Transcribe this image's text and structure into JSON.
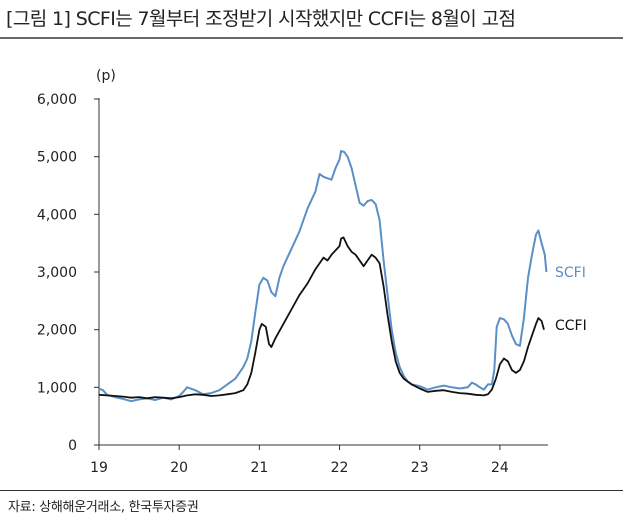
{
  "title": "[그림 1] SCFI는 7월부터 조정받기 시작했지만 CCFI는 8월이 고점",
  "source": "자료: 상해해운거래소, 한국투자증권",
  "chart_data": {
    "type": "line",
    "unit_label": "(p)",
    "ylim": [
      0,
      6000
    ],
    "yticks": [
      {
        "v": 0,
        "label": "0"
      },
      {
        "v": 1000,
        "label": "1,000"
      },
      {
        "v": 2000,
        "label": "2,000"
      },
      {
        "v": 3000,
        "label": "3,000"
      },
      {
        "v": 4000,
        "label": "4,000"
      },
      {
        "v": 5000,
        "label": "5,000"
      },
      {
        "v": 6000,
        "label": "6,000"
      }
    ],
    "xlim": [
      19,
      24.6
    ],
    "xticks": [
      {
        "v": 19,
        "label": "19"
      },
      {
        "v": 20,
        "label": "20"
      },
      {
        "v": 21,
        "label": "21"
      },
      {
        "v": 22,
        "label": "22"
      },
      {
        "v": 23,
        "label": "23"
      },
      {
        "v": 24,
        "label": "24"
      }
    ],
    "grid": false,
    "series": [
      {
        "name": "SCFI",
        "color": "#5b8fc7",
        "points": [
          [
            19.0,
            980
          ],
          [
            19.05,
            950
          ],
          [
            19.1,
            870
          ],
          [
            19.2,
            830
          ],
          [
            19.3,
            800
          ],
          [
            19.4,
            760
          ],
          [
            19.5,
            790
          ],
          [
            19.6,
            810
          ],
          [
            19.7,
            780
          ],
          [
            19.8,
            820
          ],
          [
            19.9,
            790
          ],
          [
            20.0,
            850
          ],
          [
            20.05,
            920
          ],
          [
            20.1,
            1000
          ],
          [
            20.2,
            950
          ],
          [
            20.3,
            880
          ],
          [
            20.4,
            900
          ],
          [
            20.5,
            950
          ],
          [
            20.6,
            1050
          ],
          [
            20.7,
            1150
          ],
          [
            20.8,
            1350
          ],
          [
            20.85,
            1500
          ],
          [
            20.9,
            1800
          ],
          [
            20.95,
            2300
          ],
          [
            21.0,
            2780
          ],
          [
            21.05,
            2900
          ],
          [
            21.1,
            2850
          ],
          [
            21.15,
            2650
          ],
          [
            21.2,
            2580
          ],
          [
            21.25,
            2900
          ],
          [
            21.3,
            3100
          ],
          [
            21.4,
            3400
          ],
          [
            21.5,
            3700
          ],
          [
            21.6,
            4100
          ],
          [
            21.7,
            4400
          ],
          [
            21.75,
            4700
          ],
          [
            21.8,
            4650
          ],
          [
            21.9,
            4600
          ],
          [
            21.95,
            4800
          ],
          [
            22.0,
            4950
          ],
          [
            22.02,
            5100
          ],
          [
            22.06,
            5080
          ],
          [
            22.1,
            5000
          ],
          [
            22.15,
            4800
          ],
          [
            22.2,
            4500
          ],
          [
            22.25,
            4200
          ],
          [
            22.3,
            4150
          ],
          [
            22.35,
            4230
          ],
          [
            22.4,
            4250
          ],
          [
            22.45,
            4180
          ],
          [
            22.5,
            3900
          ],
          [
            22.55,
            3200
          ],
          [
            22.6,
            2600
          ],
          [
            22.65,
            2000
          ],
          [
            22.7,
            1600
          ],
          [
            22.75,
            1350
          ],
          [
            22.8,
            1200
          ],
          [
            22.85,
            1100
          ],
          [
            22.9,
            1050
          ],
          [
            23.0,
            1020
          ],
          [
            23.1,
            960
          ],
          [
            23.2,
            1000
          ],
          [
            23.3,
            1030
          ],
          [
            23.4,
            1000
          ],
          [
            23.5,
            980
          ],
          [
            23.6,
            1000
          ],
          [
            23.65,
            1080
          ],
          [
            23.7,
            1050
          ],
          [
            23.75,
            1000
          ],
          [
            23.8,
            960
          ],
          [
            23.85,
            1050
          ],
          [
            23.9,
            1050
          ],
          [
            23.93,
            1300
          ],
          [
            23.96,
            2050
          ],
          [
            24.0,
            2200
          ],
          [
            24.05,
            2180
          ],
          [
            24.1,
            2100
          ],
          [
            24.15,
            1900
          ],
          [
            24.2,
            1750
          ],
          [
            24.25,
            1720
          ],
          [
            24.3,
            2200
          ],
          [
            24.35,
            2900
          ],
          [
            24.4,
            3300
          ],
          [
            24.45,
            3650
          ],
          [
            24.48,
            3720
          ],
          [
            24.52,
            3500
          ],
          [
            24.56,
            3300
          ],
          [
            24.58,
            3000
          ]
        ]
      },
      {
        "name": "CCFI",
        "color": "#111111",
        "points": [
          [
            19.0,
            870
          ],
          [
            19.1,
            860
          ],
          [
            19.2,
            850
          ],
          [
            19.3,
            840
          ],
          [
            19.4,
            820
          ],
          [
            19.5,
            830
          ],
          [
            19.6,
            810
          ],
          [
            19.7,
            830
          ],
          [
            19.8,
            820
          ],
          [
            19.9,
            810
          ],
          [
            20.0,
            830
          ],
          [
            20.1,
            860
          ],
          [
            20.2,
            880
          ],
          [
            20.3,
            870
          ],
          [
            20.4,
            850
          ],
          [
            20.5,
            860
          ],
          [
            20.6,
            880
          ],
          [
            20.7,
            900
          ],
          [
            20.8,
            950
          ],
          [
            20.85,
            1050
          ],
          [
            20.9,
            1250
          ],
          [
            20.95,
            1600
          ],
          [
            21.0,
            2000
          ],
          [
            21.03,
            2100
          ],
          [
            21.08,
            2050
          ],
          [
            21.12,
            1750
          ],
          [
            21.15,
            1700
          ],
          [
            21.2,
            1850
          ],
          [
            21.3,
            2100
          ],
          [
            21.4,
            2350
          ],
          [
            21.5,
            2600
          ],
          [
            21.6,
            2800
          ],
          [
            21.7,
            3050
          ],
          [
            21.8,
            3250
          ],
          [
            21.85,
            3200
          ],
          [
            21.9,
            3300
          ],
          [
            22.0,
            3450
          ],
          [
            22.02,
            3580
          ],
          [
            22.05,
            3600
          ],
          [
            22.1,
            3450
          ],
          [
            22.15,
            3350
          ],
          [
            22.2,
            3300
          ],
          [
            22.3,
            3100
          ],
          [
            22.35,
            3200
          ],
          [
            22.4,
            3300
          ],
          [
            22.45,
            3250
          ],
          [
            22.5,
            3150
          ],
          [
            22.55,
            2750
          ],
          [
            22.6,
            2250
          ],
          [
            22.65,
            1800
          ],
          [
            22.7,
            1450
          ],
          [
            22.75,
            1250
          ],
          [
            22.8,
            1150
          ],
          [
            22.9,
            1050
          ],
          [
            23.0,
            980
          ],
          [
            23.1,
            920
          ],
          [
            23.2,
            940
          ],
          [
            23.3,
            950
          ],
          [
            23.4,
            920
          ],
          [
            23.5,
            900
          ],
          [
            23.6,
            890
          ],
          [
            23.7,
            870
          ],
          [
            23.8,
            860
          ],
          [
            23.85,
            880
          ],
          [
            23.9,
            960
          ],
          [
            23.95,
            1150
          ],
          [
            24.0,
            1400
          ],
          [
            24.05,
            1500
          ],
          [
            24.1,
            1450
          ],
          [
            24.15,
            1300
          ],
          [
            24.2,
            1250
          ],
          [
            24.25,
            1300
          ],
          [
            24.3,
            1450
          ],
          [
            24.35,
            1700
          ],
          [
            24.4,
            1900
          ],
          [
            24.45,
            2100
          ],
          [
            24.48,
            2200
          ],
          [
            24.52,
            2150
          ],
          [
            24.55,
            2000
          ]
        ]
      }
    ],
    "series_labels": [
      {
        "text": "SCFI",
        "color": "#5b8fc7"
      },
      {
        "text": "CCFI",
        "color": "#111111"
      }
    ]
  }
}
